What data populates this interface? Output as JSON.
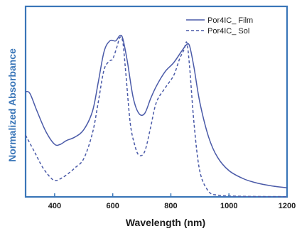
{
  "chart_data": {
    "type": "line",
    "xlabel": "Wavelength (nm)",
    "ylabel": "Normalized Absorbance",
    "xlim": [
      300,
      1200
    ],
    "ylim": [
      0,
      1.05
    ],
    "xticks": [
      "400",
      "600",
      "800",
      "1000",
      "1200"
    ],
    "xtick_values": [
      400,
      600,
      800,
      1000,
      1200
    ],
    "grid": false,
    "legend_position": "top-right",
    "axis_color": "#3a76b8",
    "series_color": "#4a5aa8",
    "series": [
      {
        "name": "Por4IC_ Film",
        "style": "solid",
        "x": [
          300,
          315,
          340,
          370,
          400,
          420,
          440,
          470,
          500,
          530,
          550,
          570,
          590,
          610,
          625,
          635,
          650,
          670,
          690,
          710,
          730,
          750,
          780,
          810,
          840,
          855,
          865,
          880,
          900,
          930,
          960,
          1000,
          1050,
          1100,
          1150,
          1200
        ],
        "y": [
          0.58,
          0.57,
          0.47,
          0.36,
          0.29,
          0.29,
          0.31,
          0.33,
          0.37,
          0.47,
          0.63,
          0.8,
          0.86,
          0.86,
          0.89,
          0.87,
          0.75,
          0.55,
          0.46,
          0.46,
          0.54,
          0.61,
          0.69,
          0.74,
          0.81,
          0.84,
          0.83,
          0.71,
          0.52,
          0.33,
          0.22,
          0.145,
          0.1,
          0.075,
          0.06,
          0.05
        ]
      },
      {
        "name": "Por4IC_ Sol",
        "style": "dashed",
        "x": [
          300,
          330,
          360,
          390,
          405,
          420,
          440,
          470,
          500,
          530,
          550,
          570,
          590,
          600,
          615,
          625,
          635,
          645,
          660,
          675,
          690,
          710,
          730,
          750,
          780,
          810,
          830,
          845,
          855,
          865,
          880,
          900,
          930,
          960,
          1000,
          1050,
          1100,
          1200
        ],
        "y": [
          0.34,
          0.25,
          0.16,
          0.1,
          0.09,
          0.1,
          0.12,
          0.16,
          0.21,
          0.35,
          0.52,
          0.7,
          0.75,
          0.76,
          0.83,
          0.88,
          0.85,
          0.68,
          0.41,
          0.29,
          0.23,
          0.25,
          0.38,
          0.52,
          0.6,
          0.67,
          0.76,
          0.81,
          0.85,
          0.71,
          0.4,
          0.14,
          0.03,
          0.01,
          0.005,
          0.003,
          0.002,
          0.001
        ]
      }
    ]
  }
}
